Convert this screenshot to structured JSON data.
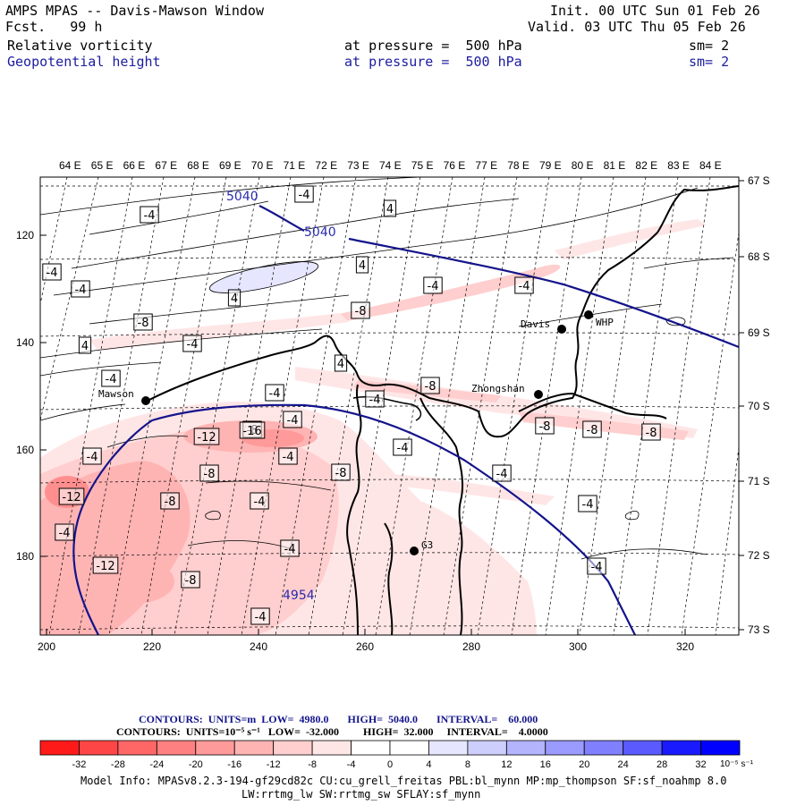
{
  "header": {
    "title": "AMPS MPAS -- Davis-Mawson Window",
    "forecast": "Fcst.   99 h",
    "init": "Init. 00 UTC Sun 01 Feb 26",
    "valid": "Valid. 03 UTC Thu 05 Feb 26",
    "field1": {
      "name": "Relative vorticity",
      "level": "at pressure =  500 hPa",
      "smooth": "sm= 2"
    },
    "field2": {
      "name": "Geopotential height",
      "level": "at pressure =  500 hPa",
      "smooth": "sm= 2"
    }
  },
  "map": {
    "top_lon_labels": [
      "64 E",
      "65 E",
      "66 E",
      "67 E",
      "68 E",
      "69 E",
      "70 E",
      "71 E",
      "72 E",
      "73 E",
      "74 E",
      "75 E",
      "76 E",
      "77 E",
      "78 E",
      "79 E",
      "80 E",
      "81 E",
      "82 E",
      "83 E",
      "84 E"
    ],
    "right_lat_labels": [
      "67 S",
      "68 S",
      "69 S",
      "70 S",
      "71 S",
      "72 S",
      "73 S"
    ],
    "left_y_ticks": [
      "120",
      "140",
      "160",
      "180"
    ],
    "bottom_x_ticks": [
      "200",
      "220",
      "240",
      "260",
      "280",
      "300",
      "320"
    ],
    "stations": [
      {
        "name": "Mawson"
      },
      {
        "name": "Davis"
      },
      {
        "name": "WHP"
      },
      {
        "name": "Zhongshan"
      },
      {
        "name": "G3"
      }
    ],
    "height_labels": [
      "5040",
      "5040",
      "4954"
    ],
    "vorticity_labels": [
      "-4",
      "-4",
      "4",
      "4",
      "-4",
      "4",
      "-4",
      "-4",
      "-8",
      "-8",
      "4",
      "-4",
      "4",
      "-4",
      "-4",
      "-4",
      "-8",
      "-4",
      "-4",
      "-8",
      "-4",
      "-8",
      "-12",
      "-16",
      "-8",
      "-4",
      "-8",
      "-8",
      "-4",
      "-8",
      "-8",
      "-4",
      "-4",
      "-12",
      "-4",
      "-4",
      "-12",
      "-4",
      "-8",
      "-4",
      "-4"
    ]
  },
  "legend": {
    "contours1": "CONTOURS:  UNITS=m  LOW=  4980.0       HIGH=  5040.0       INTERVAL=    60.000",
    "contours2": "CONTOURS:  UNITS=10⁻⁵ s⁻¹   LOW=  -32.000         HIGH=  32.000     INTERVAL=    4.0000",
    "colorbar_labels": [
      "-32",
      "-28",
      "-24",
      "-20",
      "-16",
      "-12",
      "-8",
      "-4",
      "0",
      "4",
      "8",
      "12",
      "16",
      "20",
      "24",
      "28",
      "32"
    ],
    "colorbar_unit": "10⁻⁵ s⁻¹",
    "colors": [
      "#ff1a1a",
      "#ff4646",
      "#ff6666",
      "#ff8080",
      "#ff9a9a",
      "#ffb4b4",
      "#ffcece",
      "#ffe6e6",
      "#ffffff",
      "#ffffff",
      "#e6e6ff",
      "#cecefc",
      "#b4b4fc",
      "#9a9aff",
      "#8080ff",
      "#5a5aff",
      "#1a1aff"
    ],
    "model_info1": "Model Info: MPASv8.2.3-194-gf29cd82c CU:cu_grell_freitas PBL:bl_mynn MP:mp_thompson SF:sf_noahmp 8.0",
    "model_info2": "LW:rrtmg_lw SW:rrtmg_sw SFLAY:sf_mynn"
  }
}
